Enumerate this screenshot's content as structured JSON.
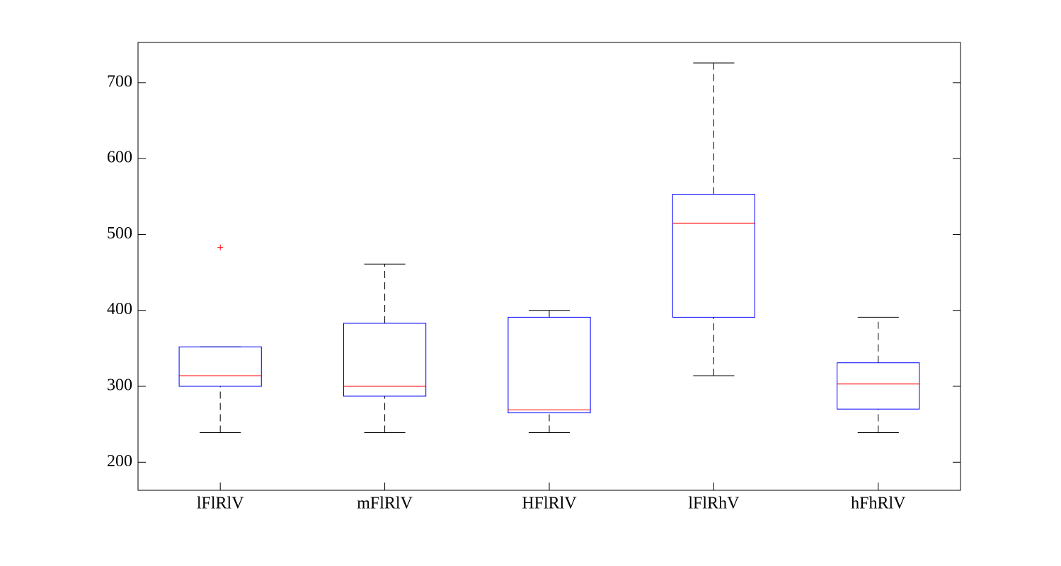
{
  "chart_data": {
    "type": "box",
    "categories": [
      "lFlRlV",
      "mFlRlV",
      "HFlRlV",
      "lFlRhV",
      "hFhRlV"
    ],
    "boxes": [
      {
        "low": 239,
        "q1": 300,
        "median": 314,
        "q3": 352,
        "high": 352,
        "outliers": [
          483
        ]
      },
      {
        "low": 239,
        "q1": 287,
        "median": 300,
        "q3": 383,
        "high": 461,
        "outliers": []
      },
      {
        "low": 239,
        "q1": 265,
        "median": 269,
        "q3": 391,
        "high": 400,
        "outliers": []
      },
      {
        "low": 314,
        "q1": 391,
        "median": 515,
        "q3": 553,
        "high": 726,
        "outliers": []
      },
      {
        "low": 239,
        "q1": 270,
        "median": 303,
        "q3": 331,
        "high": 391,
        "outliers": []
      }
    ],
    "ylim": [
      163,
      753
    ],
    "yticks": [
      200,
      300,
      400,
      500,
      600,
      700
    ],
    "box_color": "#0000ff",
    "median_color": "#ff0000",
    "whisker_color": "#000000",
    "outlier_color": "#ff0000"
  }
}
